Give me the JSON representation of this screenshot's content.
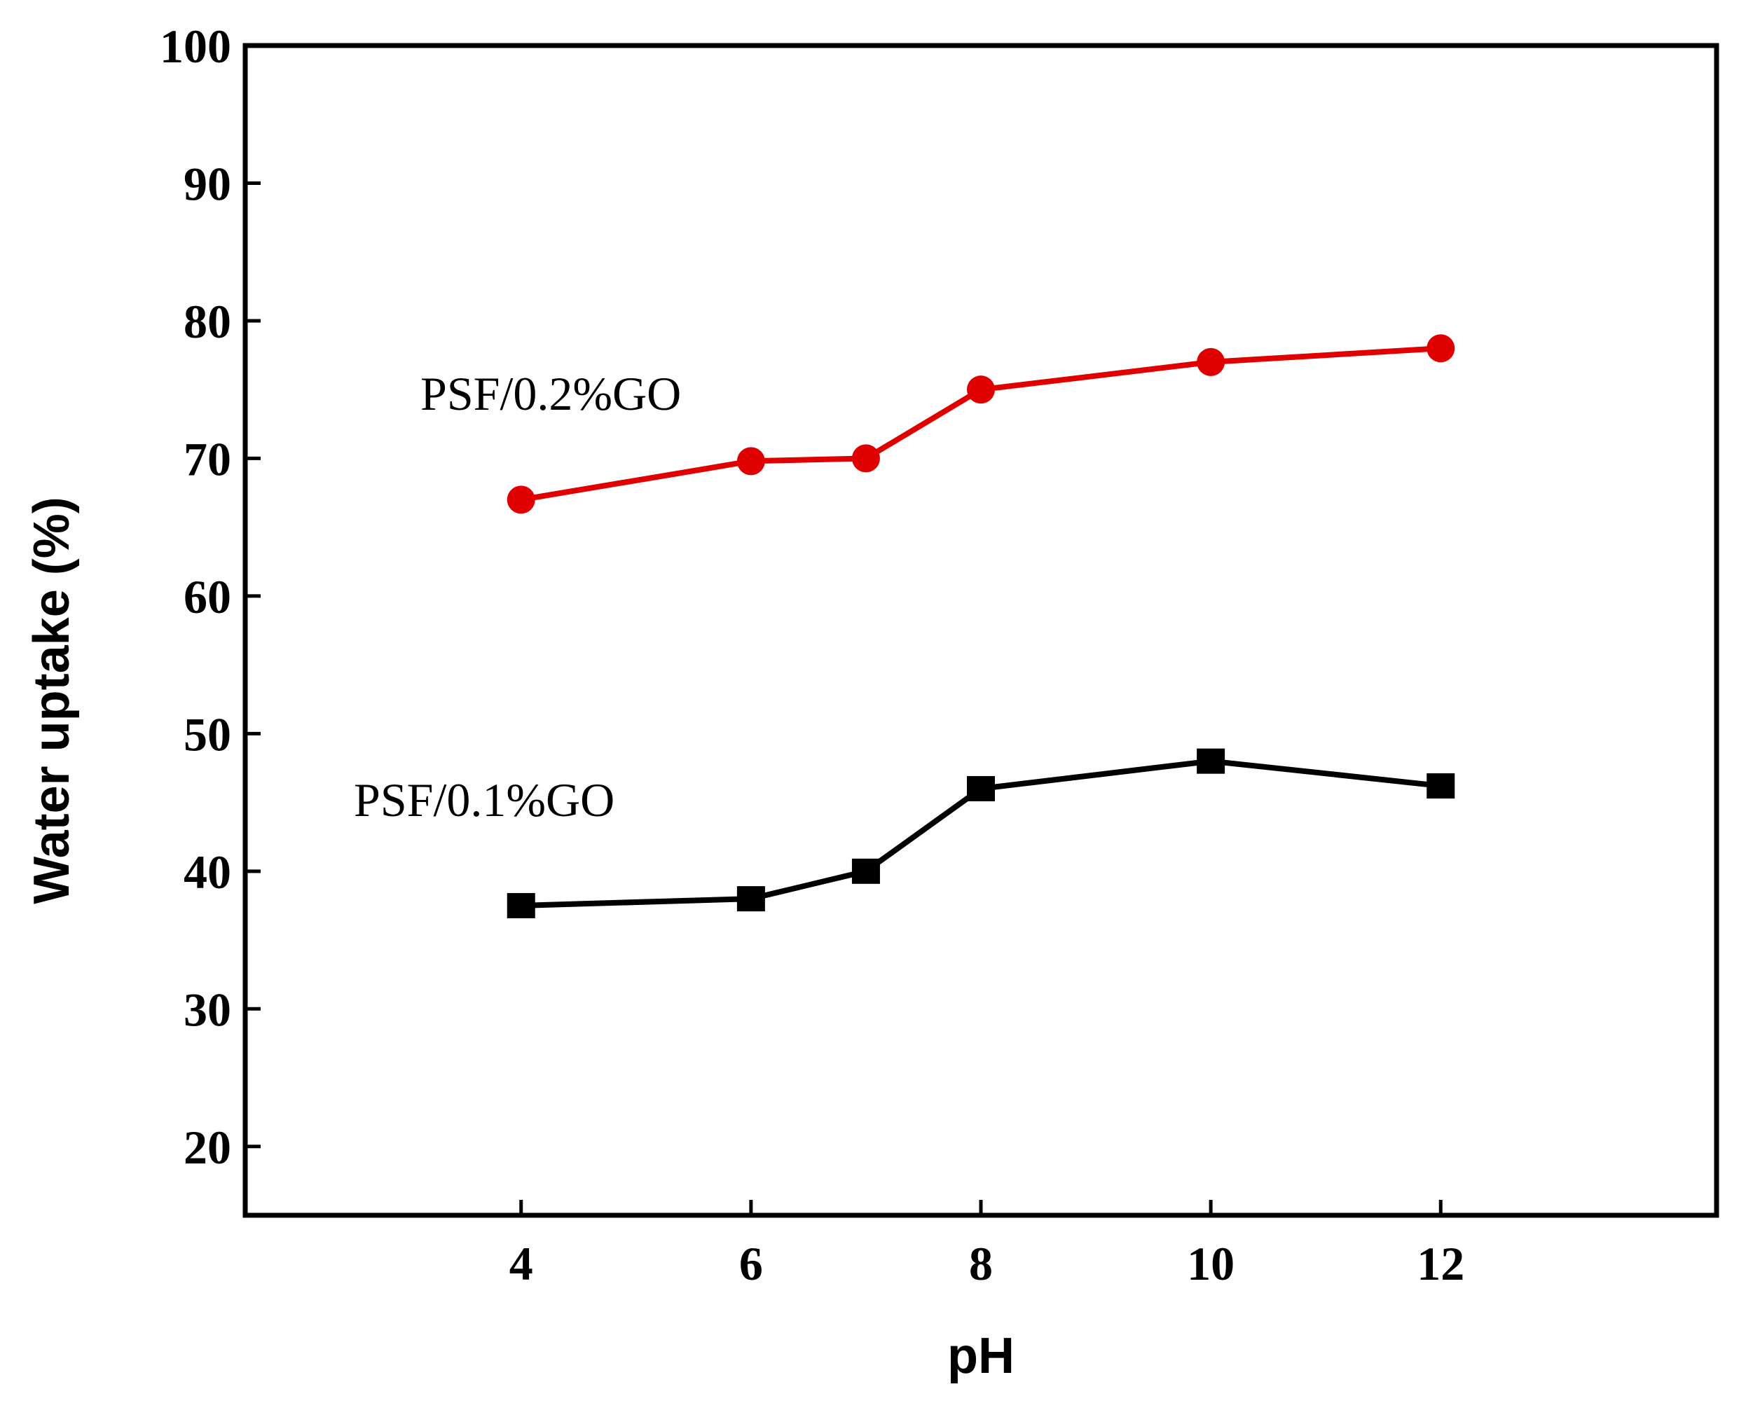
{
  "chart_data": {
    "type": "line",
    "title": "",
    "xlabel": "pH",
    "ylabel": "Water uptake (%)",
    "xlim": [
      1.6,
      14.4
    ],
    "ylim": [
      15,
      100
    ],
    "xticks": [
      4,
      6,
      8,
      10,
      12
    ],
    "yticks": [
      20,
      30,
      40,
      50,
      60,
      70,
      80,
      90,
      100
    ],
    "grid": false,
    "series": [
      {
        "name": "PSF/0.2%GO",
        "color": "#e00000",
        "marker": "circle",
        "x": [
          4,
          6,
          7,
          8,
          10,
          12
        ],
        "y": [
          67,
          69.8,
          70,
          75,
          77,
          78
        ]
      },
      {
        "name": "PSF/0.1%GO",
        "color": "#000000",
        "marker": "square",
        "x": [
          4,
          6,
          7,
          8,
          10,
          12
        ],
        "y": [
          37.5,
          38,
          40,
          46,
          48,
          46.2
        ]
      }
    ]
  }
}
